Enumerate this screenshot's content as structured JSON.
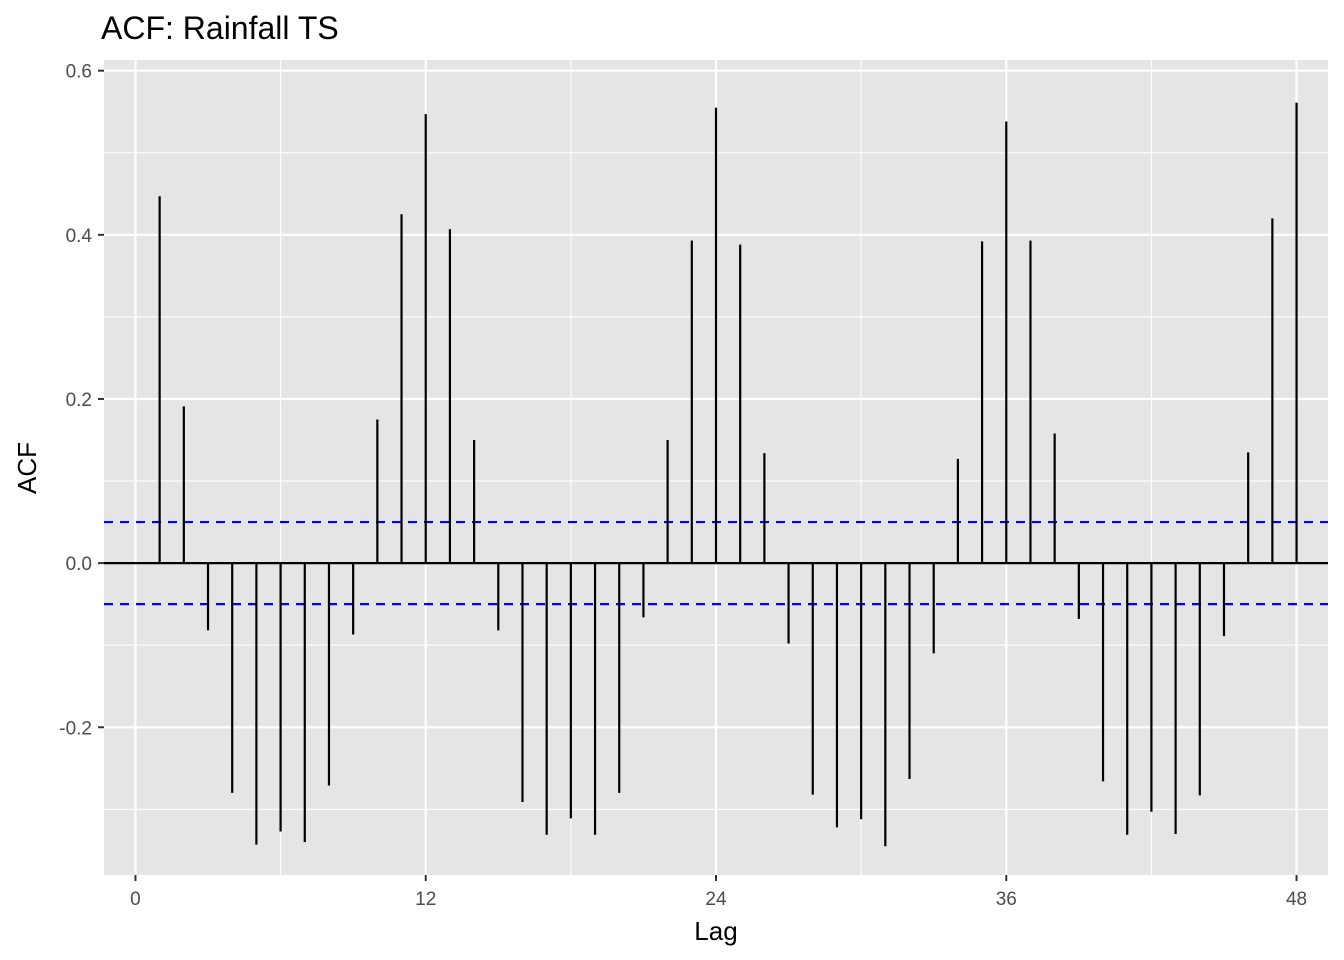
{
  "chart_data": {
    "type": "bar",
    "title": "ACF: Rainfall TS",
    "xlabel": "Lag",
    "ylabel": "ACF",
    "xlim": [
      -1.3,
      49.3
    ],
    "ylim": [
      -0.38,
      0.613
    ],
    "x_ticks": [
      0,
      12,
      24,
      36,
      48
    ],
    "x_tick_labels": [
      "0",
      "12",
      "24",
      "36",
      "48"
    ],
    "y_ticks": [
      -0.2,
      0.0,
      0.2,
      0.4,
      0.6
    ],
    "y_tick_labels": [
      "-0.2",
      "0.0",
      "0.2",
      "0.4",
      "0.6"
    ],
    "y_minor_ticks": [
      -0.3,
      -0.1,
      0.1,
      0.3,
      0.5
    ],
    "x_minor_ticks": [
      6,
      18,
      30,
      42
    ],
    "grid": true,
    "panel_color": "#e5e5e5",
    "grid_color": "#ffffff",
    "bar_color": "#000000",
    "confidence_color": "#0000ff",
    "confidence_bounds": [
      0.05,
      -0.05
    ],
    "x": [
      1,
      2,
      3,
      4,
      5,
      6,
      7,
      8,
      9,
      10,
      11,
      12,
      13,
      14,
      15,
      16,
      17,
      18,
      19,
      20,
      21,
      22,
      23,
      24,
      25,
      26,
      27,
      28,
      29,
      30,
      31,
      32,
      33,
      34,
      35,
      36,
      37,
      38,
      39,
      40,
      41,
      42,
      43,
      44,
      45,
      46,
      47,
      48
    ],
    "values": [
      0.447,
      0.191,
      -0.082,
      -0.28,
      -0.343,
      -0.327,
      -0.34,
      -0.271,
      -0.087,
      0.175,
      0.425,
      0.547,
      0.407,
      0.15,
      -0.082,
      -0.291,
      -0.331,
      -0.311,
      -0.331,
      -0.28,
      -0.066,
      0.15,
      0.393,
      0.555,
      0.388,
      0.134,
      -0.098,
      -0.282,
      -0.322,
      -0.312,
      -0.345,
      -0.263,
      -0.11,
      0.127,
      0.392,
      0.538,
      0.393,
      0.158,
      -0.068,
      -0.266,
      -0.331,
      -0.303,
      -0.33,
      -0.283,
      -0.089,
      0.135,
      0.42,
      0.561
    ]
  }
}
